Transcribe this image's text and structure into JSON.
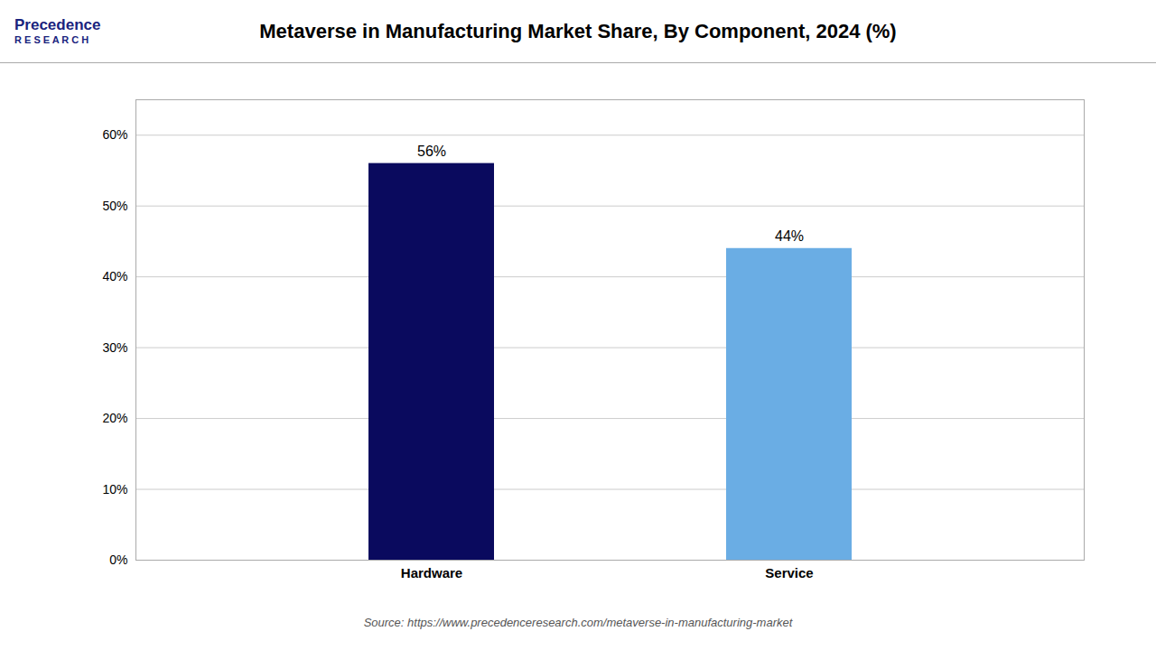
{
  "chart_data": {
    "type": "bar",
    "title": "Metaverse in Manufacturing Market Share, By Component, 2024 (%)",
    "categories": [
      "Hardware",
      "Service"
    ],
    "values": [
      56,
      44
    ],
    "value_labels": [
      "56%",
      "44%"
    ],
    "data_labels": true,
    "colors": [
      "#0a0a5e",
      "#6aade4"
    ],
    "ylim": [
      0,
      65
    ],
    "yticks": [
      {
        "value": 0,
        "label": "0%"
      },
      {
        "value": 10,
        "label": "10%"
      },
      {
        "value": 20,
        "label": "20%"
      },
      {
        "value": 30,
        "label": "30%"
      },
      {
        "value": 40,
        "label": "40%"
      },
      {
        "value": 50,
        "label": "50%"
      },
      {
        "value": 60,
        "label": "60%"
      }
    ],
    "grid": true,
    "annotations": [
      "Source: https://www.precedenceresearch.com/metaverse-in-manufacturing-market",
      "Precedence",
      "R E S E A R C H"
    ]
  }
}
